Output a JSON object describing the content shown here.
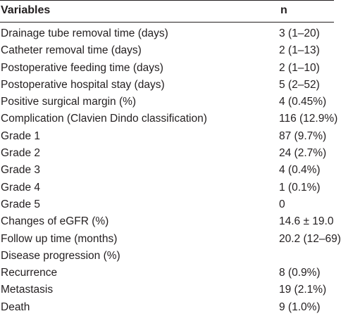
{
  "table": {
    "header": {
      "variable": "Variables",
      "n": "n"
    },
    "rows": [
      {
        "variable": "Drainage tube removal time (days)",
        "n": "3 (1–20)"
      },
      {
        "variable": "Catheter removal time (days)",
        "n": "2 (1–13)"
      },
      {
        "variable": "Postoperative feeding time (days)",
        "n": "2 (1–10)"
      },
      {
        "variable": "Postoperative hospital stay (days)",
        "n": "5 (2–52)"
      },
      {
        "variable": "Positive surgical margin (%)",
        "n": "4 (0.45%)"
      },
      {
        "variable": "Complication (Clavien Dindo classification)",
        "n": "116 (12.9%)"
      },
      {
        "variable": "Grade 1",
        "n": "87 (9.7%)"
      },
      {
        "variable": "Grade 2",
        "n": "24 (2.7%)"
      },
      {
        "variable": "Grade 3",
        "n": "4 (0.4%)"
      },
      {
        "variable": "Grade 4",
        "n": "1 (0.1%)"
      },
      {
        "variable": "Grade 5",
        "n": "0"
      },
      {
        "variable": "Changes of eGFR (%)",
        "n": "14.6 ± 19.0"
      },
      {
        "variable": "Follow up time (months)",
        "n": "20.2 (12–69)"
      },
      {
        "variable": "Disease progression (%)",
        "n": ""
      },
      {
        "variable": "Recurrence",
        "n": "8 (0.9%)"
      },
      {
        "variable": "Metastasis",
        "n": "19 (2.1%)"
      },
      {
        "variable": "Death",
        "n": "9 (1.0%)"
      }
    ]
  }
}
